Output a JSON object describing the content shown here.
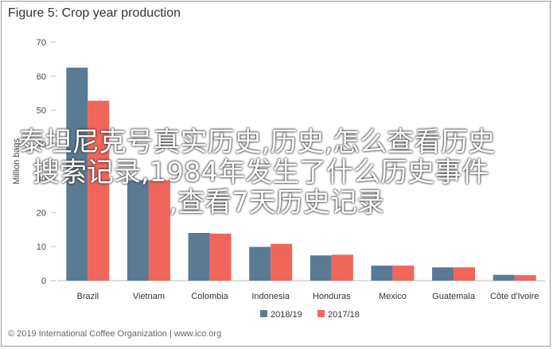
{
  "chart_data": {
    "type": "bar",
    "title": "Figure 5: Crop year production",
    "ylabel": "Million bags",
    "ylim": [
      0,
      70
    ],
    "yticks": [
      0,
      10,
      20,
      30,
      40,
      50,
      60,
      70
    ],
    "categories": [
      "Brazil",
      "Vietnam",
      "Colombia",
      "Indonesia",
      "Honduras",
      "Mexico",
      "Guatemala",
      "Côte d'Ivoire"
    ],
    "series": [
      {
        "name": "2018/19",
        "color": "#5b7a94",
        "values": [
          62.5,
          29.5,
          14.0,
          9.9,
          7.4,
          4.4,
          3.9,
          1.7
        ]
      },
      {
        "name": "2017/18",
        "color": "#f0665a",
        "values": [
          52.8,
          29.5,
          13.8,
          10.8,
          7.6,
          4.4,
          3.9,
          1.6
        ]
      }
    ],
    "legend_position": "bottom"
  },
  "footer": "© 2019 International Coffee Organization | www.ico.org",
  "overlay": {
    "line1": "泰坦尼克号真实历史,历史,怎么查看历史",
    "line2": "搜索记录,1984年发生了什么历史事件",
    "line3": ",查看7天历史记录"
  }
}
